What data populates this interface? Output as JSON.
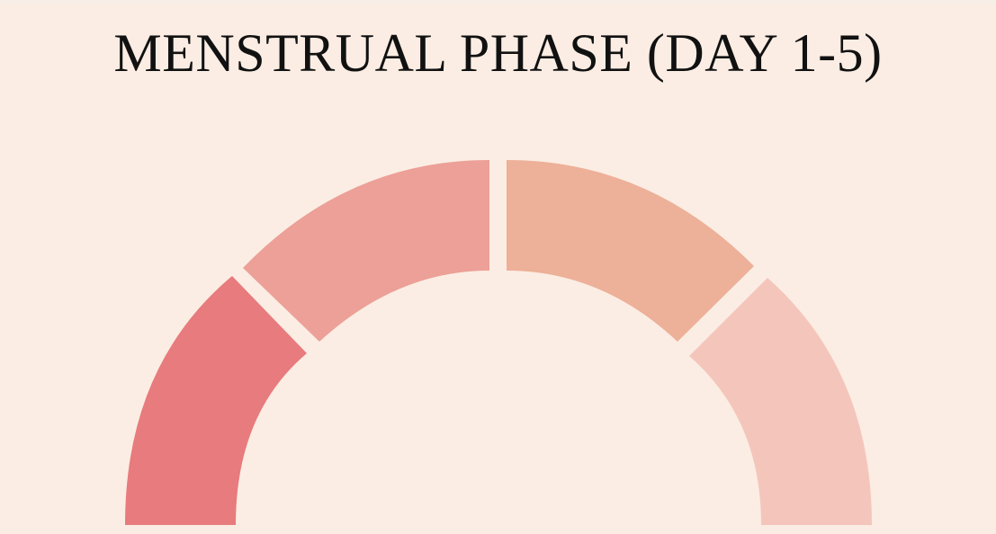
{
  "title": "MENSTRUAL PHASE (DAY 1-5)",
  "colors": {
    "background": "#FBEDE3",
    "title_text": "#111111",
    "segments": [
      "#E77B7D",
      "#ECA097",
      "#EDB099",
      "#F4C6BB"
    ]
  },
  "diagram": {
    "segments": [
      {
        "name": "segment-1",
        "color": "#E77B7D"
      },
      {
        "name": "segment-2",
        "color": "#ECA097"
      },
      {
        "name": "segment-3",
        "color": "#EDB099"
      },
      {
        "name": "segment-4",
        "color": "#F4C6BB"
      }
    ]
  }
}
